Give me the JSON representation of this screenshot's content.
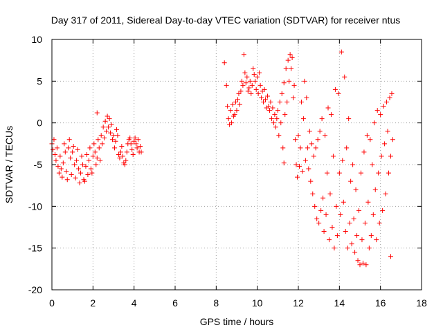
{
  "chart_data": {
    "type": "scatter",
    "title": "Day 317 of 2011, Sidereal Day-to-day VTEC variation (SDTVAR) for receiver ntus",
    "xlabel": "GPS time / hours",
    "ylabel": "SDTVAR / TECUs",
    "xlim": [
      0,
      18
    ],
    "ylim": [
      -20,
      10
    ],
    "x_ticks": [
      "0",
      "2",
      "4",
      "6",
      "8",
      "10",
      "12",
      "14",
      "16",
      "18"
    ],
    "y_ticks": [
      "10",
      "5",
      "0",
      "-5",
      "-10",
      "-15",
      "-20"
    ],
    "grid": true,
    "legend": "none",
    "marker": "+",
    "color": "#ff0000",
    "series": [
      {
        "points": [
          [
            0.0,
            -2.5
          ],
          [
            0.05,
            -3.2
          ],
          [
            0.1,
            -2.0
          ],
          [
            0.15,
            -3.8
          ],
          [
            0.2,
            -4.5
          ],
          [
            0.25,
            -3.0
          ],
          [
            0.3,
            -5.2
          ],
          [
            0.35,
            -6.0
          ],
          [
            0.4,
            -4.0
          ],
          [
            0.45,
            -5.5
          ],
          [
            0.5,
            -6.5
          ],
          [
            0.55,
            -4.8
          ],
          [
            0.6,
            -2.5
          ],
          [
            0.65,
            -3.5
          ],
          [
            0.7,
            -5.8
          ],
          [
            0.75,
            -6.8
          ],
          [
            0.8,
            -3.0
          ],
          [
            0.85,
            -2.0
          ],
          [
            0.9,
            -4.2
          ],
          [
            0.95,
            -6.2
          ],
          [
            1.0,
            -3.5
          ],
          [
            1.05,
            -2.8
          ],
          [
            1.1,
            -5.0
          ],
          [
            1.15,
            -6.6
          ],
          [
            1.2,
            -4.5
          ],
          [
            1.25,
            -3.2
          ],
          [
            1.3,
            -5.5
          ],
          [
            1.35,
            -7.2
          ],
          [
            1.4,
            -6.0
          ],
          [
            1.45,
            -4.0
          ],
          [
            1.5,
            -5.0
          ],
          [
            1.55,
            -6.8
          ],
          [
            1.6,
            -7.0
          ],
          [
            1.65,
            -5.2
          ],
          [
            1.7,
            -3.8
          ],
          [
            1.75,
            -6.2
          ],
          [
            1.8,
            -4.5
          ],
          [
            1.85,
            -3.0
          ],
          [
            1.9,
            -5.5
          ],
          [
            1.95,
            -6.0
          ],
          [
            2.0,
            -4.0
          ],
          [
            2.05,
            -2.5
          ],
          [
            2.1,
            -3.5
          ],
          [
            2.15,
            -5.0
          ],
          [
            2.2,
            -4.2
          ],
          [
            2.25,
            -2.0
          ],
          [
            2.3,
            -3.0
          ],
          [
            2.35,
            -4.5
          ],
          [
            2.4,
            -1.5
          ],
          [
            2.45,
            -2.5
          ],
          [
            2.5,
            -0.5
          ],
          [
            2.55,
            -1.8
          ],
          [
            2.6,
            0.2
          ],
          [
            2.65,
            -1.0
          ],
          [
            2.7,
            0.8
          ],
          [
            2.75,
            -0.5
          ],
          [
            2.8,
            0.5
          ],
          [
            2.85,
            -1.2
          ],
          [
            2.9,
            -0.2
          ],
          [
            2.95,
            -2.0
          ],
          [
            3.0,
            -1.5
          ],
          [
            3.05,
            -3.0
          ],
          [
            3.1,
            -2.2
          ],
          [
            3.15,
            -0.8
          ],
          [
            3.2,
            -1.5
          ],
          [
            3.25,
            -3.8
          ],
          [
            3.3,
            -4.2
          ],
          [
            3.35,
            -3.5
          ],
          [
            3.4,
            -2.8
          ],
          [
            3.45,
            -4.0
          ],
          [
            3.5,
            -4.8
          ],
          [
            3.55,
            -5.0
          ],
          [
            3.6,
            -4.5
          ],
          [
            3.65,
            -3.5
          ],
          [
            3.7,
            -2.5
          ],
          [
            3.75,
            -2.0
          ],
          [
            3.8,
            -1.8
          ],
          [
            3.85,
            -2.5
          ],
          [
            3.9,
            -3.2
          ],
          [
            3.95,
            -3.8
          ],
          [
            4.0,
            -2.2
          ],
          [
            4.05,
            -1.8
          ],
          [
            4.1,
            -2.5
          ],
          [
            4.15,
            -3.0
          ],
          [
            4.2,
            -2.0
          ],
          [
            4.25,
            -3.5
          ],
          [
            4.3,
            -2.8
          ],
          [
            4.35,
            -3.5
          ],
          [
            2.2,
            1.2
          ],
          [
            8.4,
            7.2
          ],
          [
            8.5,
            4.5
          ],
          [
            8.55,
            2.0
          ],
          [
            8.6,
            0.5
          ],
          [
            8.65,
            -0.2
          ],
          [
            8.7,
            1.5
          ],
          [
            8.75,
            0.0
          ],
          [
            8.8,
            2.2
          ],
          [
            8.85,
            0.8
          ],
          [
            8.9,
            1.0
          ],
          [
            8.95,
            2.5
          ],
          [
            9.0,
            1.5
          ],
          [
            9.05,
            2.8
          ],
          [
            9.1,
            3.5
          ],
          [
            9.15,
            2.2
          ],
          [
            9.2,
            3.8
          ],
          [
            9.25,
            5.0
          ],
          [
            9.3,
            4.5
          ],
          [
            9.35,
            8.2
          ],
          [
            9.4,
            6.0
          ],
          [
            9.45,
            4.8
          ],
          [
            9.5,
            5.5
          ],
          [
            9.55,
            3.8
          ],
          [
            9.6,
            4.2
          ],
          [
            9.65,
            5.0
          ],
          [
            9.7,
            3.5
          ],
          [
            9.75,
            4.5
          ],
          [
            9.8,
            6.5
          ],
          [
            9.85,
            5.8
          ],
          [
            9.9,
            5.0
          ],
          [
            9.95,
            4.0
          ],
          [
            10.0,
            5.5
          ],
          [
            10.05,
            3.5
          ],
          [
            10.1,
            6.0
          ],
          [
            10.15,
            4.5
          ],
          [
            10.2,
            3.0
          ],
          [
            10.25,
            3.8
          ],
          [
            10.3,
            2.5
          ],
          [
            10.35,
            4.0
          ],
          [
            10.4,
            2.8
          ],
          [
            10.45,
            1.8
          ],
          [
            10.5,
            3.2
          ],
          [
            10.55,
            2.0
          ],
          [
            10.6,
            1.5
          ],
          [
            10.65,
            2.5
          ],
          [
            10.7,
            0.5
          ],
          [
            10.75,
            1.8
          ],
          [
            10.8,
            0.0
          ],
          [
            10.85,
            1.0
          ],
          [
            10.9,
            -0.5
          ],
          [
            10.95,
            0.5
          ],
          [
            11.0,
            1.5
          ],
          [
            11.05,
            -1.5
          ],
          [
            11.1,
            2.5
          ],
          [
            11.15,
            0.0
          ],
          [
            11.2,
            3.5
          ],
          [
            11.25,
            -3.0
          ],
          [
            11.3,
            4.8
          ],
          [
            11.35,
            1.0
          ],
          [
            11.4,
            6.5
          ],
          [
            11.45,
            2.5
          ],
          [
            11.5,
            7.5
          ],
          [
            11.55,
            5.0
          ],
          [
            11.6,
            8.2
          ],
          [
            11.65,
            6.5
          ],
          [
            11.7,
            7.8
          ],
          [
            11.75,
            3.0
          ],
          [
            11.8,
            4.5
          ],
          [
            11.85,
            -2.0
          ],
          [
            11.9,
            -5.0
          ],
          [
            11.95,
            -6.5
          ],
          [
            12.0,
            -1.5
          ],
          [
            12.05,
            -5.2
          ],
          [
            12.1,
            -3.0
          ],
          [
            12.15,
            2.5
          ],
          [
            12.2,
            -5.8
          ],
          [
            12.25,
            0.5
          ],
          [
            12.3,
            5.0
          ],
          [
            12.35,
            -4.5
          ],
          [
            12.4,
            3.0
          ],
          [
            12.45,
            -3.0
          ],
          [
            12.5,
            -5.5
          ],
          [
            12.55,
            -1.0
          ],
          [
            12.6,
            -7.0
          ],
          [
            12.65,
            -2.5
          ],
          [
            12.7,
            -8.5
          ],
          [
            12.75,
            -4.0
          ],
          [
            12.8,
            -10.0
          ],
          [
            12.85,
            -3.0
          ],
          [
            12.9,
            -11.5
          ],
          [
            12.95,
            -2.0
          ],
          [
            13.0,
            -12.0
          ],
          [
            13.05,
            -1.0
          ],
          [
            13.1,
            -10.5
          ],
          [
            13.15,
            0.5
          ],
          [
            13.2,
            -9.0
          ],
          [
            13.25,
            -13.0
          ],
          [
            13.3,
            -1.5
          ],
          [
            13.35,
            -11.0
          ],
          [
            13.4,
            -6.0
          ],
          [
            13.45,
            1.8
          ],
          [
            13.5,
            -14.0
          ],
          [
            13.55,
            -8.5
          ],
          [
            13.6,
            1.0
          ],
          [
            13.65,
            -12.5
          ],
          [
            13.7,
            -4.0
          ],
          [
            13.75,
            -15.0
          ],
          [
            13.8,
            4.0
          ],
          [
            13.85,
            -10.0
          ],
          [
            13.9,
            -13.5
          ],
          [
            13.95,
            3.5
          ],
          [
            14.0,
            -6.0
          ],
          [
            14.05,
            -11.0
          ],
          [
            14.1,
            8.5
          ],
          [
            14.15,
            -4.5
          ],
          [
            14.2,
            -9.5
          ],
          [
            14.25,
            5.5
          ],
          [
            14.3,
            -13.0
          ],
          [
            14.35,
            -3.0
          ],
          [
            14.4,
            -15.0
          ],
          [
            14.45,
            0.5
          ],
          [
            14.5,
            -12.0
          ],
          [
            14.55,
            -7.0
          ],
          [
            14.6,
            -14.5
          ],
          [
            14.65,
            -5.0
          ],
          [
            14.7,
            -11.5
          ],
          [
            14.75,
            -15.5
          ],
          [
            14.8,
            -8.0
          ],
          [
            14.85,
            -13.5
          ],
          [
            14.9,
            -16.5
          ],
          [
            14.95,
            -10.5
          ],
          [
            15.0,
            -17.0
          ],
          [
            15.05,
            -6.0
          ],
          [
            15.1,
            -14.0
          ],
          [
            15.15,
            -16.8
          ],
          [
            15.2,
            -3.5
          ],
          [
            15.25,
            -12.0
          ],
          [
            15.3,
            -17.0
          ],
          [
            15.35,
            -1.5
          ],
          [
            15.4,
            -9.5
          ],
          [
            15.45,
            -15.0
          ],
          [
            15.5,
            -2.0
          ],
          [
            15.55,
            -13.5
          ],
          [
            15.6,
            -5.0
          ],
          [
            15.65,
            -11.0
          ],
          [
            15.7,
            0.0
          ],
          [
            15.75,
            -8.0
          ],
          [
            15.8,
            -14.0
          ],
          [
            15.85,
            1.5
          ],
          [
            15.9,
            -6.0
          ],
          [
            15.95,
            -12.0
          ],
          [
            16.0,
            1.0
          ],
          [
            16.05,
            -4.0
          ],
          [
            16.1,
            -10.5
          ],
          [
            16.15,
            2.0
          ],
          [
            16.2,
            -2.5
          ],
          [
            16.25,
            -8.5
          ],
          [
            16.3,
            2.5
          ],
          [
            16.35,
            -1.0
          ],
          [
            16.4,
            -6.0
          ],
          [
            16.45,
            3.0
          ],
          [
            16.5,
            -4.0
          ],
          [
            16.55,
            3.5
          ],
          [
            16.6,
            -2.0
          ],
          [
            16.5,
            -16.0
          ],
          [
            11.3,
            -4.8
          ]
        ]
      }
    ]
  }
}
